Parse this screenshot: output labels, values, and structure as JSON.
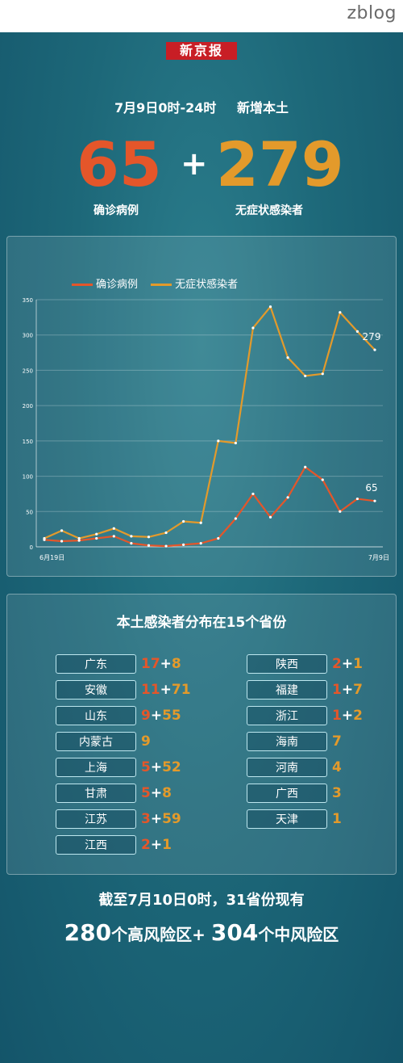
{
  "watermark": "zblog",
  "logo_text": "新京报",
  "header": {
    "date": "7月9日0时-24时",
    "title": "新增本土"
  },
  "headline": {
    "confirmed": "65",
    "plus": "+",
    "asymptomatic": "279",
    "confirmed_label": "确诊病例",
    "asymptomatic_label": "无症状感染者"
  },
  "colors": {
    "confirmed": "#e4562a",
    "asymptomatic": "#e39a2b"
  },
  "chart_data": {
    "type": "line",
    "x_start_label": "6月19日",
    "x_end_label": "7月9日",
    "ylim": [
      0,
      350
    ],
    "y_ticks": [
      0,
      50,
      100,
      150,
      200,
      250,
      300,
      350
    ],
    "series": [
      {
        "name": "确诊病例",
        "end_label": "65",
        "values": [
          10,
          8,
          9,
          12,
          15,
          5,
          2,
          1,
          3,
          5,
          12,
          40,
          75,
          42,
          70,
          113,
          95,
          50,
          68,
          65
        ]
      },
      {
        "name": "无症状感染者",
        "end_label": "279",
        "values": [
          12,
          23,
          12,
          18,
          26,
          15,
          14,
          20,
          36,
          34,
          150,
          147,
          310,
          340,
          268,
          242,
          245,
          332,
          305,
          279
        ]
      }
    ]
  },
  "distribution": {
    "title": "本土感染者分布在15个省份",
    "left": [
      {
        "name": "广东",
        "a": "17",
        "plus": "+",
        "b": "8"
      },
      {
        "name": "安徽",
        "a": "11",
        "plus": "+",
        "b": "71"
      },
      {
        "name": "山东",
        "a": "9",
        "plus": "+",
        "b": "55"
      },
      {
        "name": "内蒙古",
        "a": "9",
        "plus": "",
        "b": ""
      },
      {
        "name": "上海",
        "a": "5",
        "plus": "+",
        "b": "52"
      },
      {
        "name": "甘肃",
        "a": "5",
        "plus": "+",
        "b": "8"
      },
      {
        "name": "江苏",
        "a": "3",
        "plus": "+",
        "b": "59"
      },
      {
        "name": "江西",
        "a": "2",
        "plus": "+",
        "b": "1"
      }
    ],
    "right": [
      {
        "name": "陕西",
        "a": "2",
        "plus": "+",
        "b": "1"
      },
      {
        "name": "福建",
        "a": "1",
        "plus": "+",
        "b": "7"
      },
      {
        "name": "浙江",
        "a": "1",
        "plus": "+",
        "b": "2"
      },
      {
        "name": "海南",
        "a": "",
        "plus": "",
        "b": "7"
      },
      {
        "name": "河南",
        "a": "",
        "plus": "",
        "b": "4"
      },
      {
        "name": "广西",
        "a": "",
        "plus": "",
        "b": "3"
      },
      {
        "name": "天津",
        "a": "",
        "plus": "",
        "b": "1"
      }
    ]
  },
  "footer": {
    "line1": "截至7月10日0时，31省份现有",
    "high_num": "280",
    "high_text": "个高风险区+",
    "mid_num": "304",
    "mid_text": "个中风险区"
  }
}
